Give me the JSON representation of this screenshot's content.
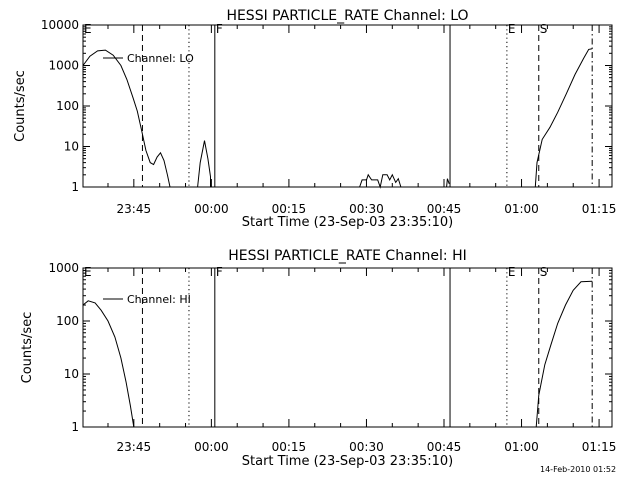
{
  "footer": {
    "timestamp": "14-Feb-2010 01:52"
  },
  "chart_data": [
    {
      "type": "line",
      "title": "HESSI PARTICLE_RATE Channel: LO",
      "xlabel": "Start Time (23-Sep-03 23:35:10)",
      "ylabel": "Counts/sec",
      "yscale": "log",
      "ylim": [
        1,
        10000
      ],
      "y_ticks": [
        {
          "value": 1,
          "label": "1"
        },
        {
          "value": 10,
          "label": "10"
        },
        {
          "value": 100,
          "label": "100"
        },
        {
          "value": 1000,
          "label": "1000"
        },
        {
          "value": 10000,
          "label": "10000"
        }
      ],
      "xlim": [
        "23:35:10",
        "01:17:30"
      ],
      "x_ticks": [
        {
          "value": "23:45",
          "label": "23:45"
        },
        {
          "value": "00:00",
          "label": "00:00"
        },
        {
          "value": "00:15",
          "label": "00:15"
        },
        {
          "value": "00:30",
          "label": "00:30"
        },
        {
          "value": "00:45",
          "label": "00:45"
        },
        {
          "value": "01:00",
          "label": "01:00"
        },
        {
          "value": "01:15",
          "label": "01:15"
        }
      ],
      "legend": {
        "label": "Channel: LO",
        "position": "top-left"
      },
      "markers": [
        {
          "label": "E",
          "time": "23:35:10",
          "style": "dash-dot"
        },
        {
          "label": "",
          "time": "23:46:40",
          "style": "dashed"
        },
        {
          "label": "",
          "time": "23:55:40",
          "style": "dotted"
        },
        {
          "label": "F",
          "time": "00:00:40",
          "style": "solid"
        },
        {
          "label": "",
          "time": "00:46:10",
          "style": "solid"
        },
        {
          "label": "E",
          "time": "00:57:10",
          "style": "dotted"
        },
        {
          "label": "S",
          "time": "01:03:20",
          "style": "dashed"
        },
        {
          "label": "",
          "time": "01:13:40",
          "style": "dash-dot"
        }
      ],
      "series": [
        {
          "segments": [
            [
              [
                "23:35:10",
                1000
              ],
              [
                "23:36:30",
                1700
              ],
              [
                "23:38:00",
                2300
              ],
              [
                "23:39:30",
                2400
              ],
              [
                "23:41:00",
                1800
              ],
              [
                "23:42:30",
                1000
              ],
              [
                "23:43:40",
                450
              ],
              [
                "23:44:50",
                160
              ],
              [
                "23:45:40",
                75
              ],
              [
                "23:46:30",
                25
              ],
              [
                "23:47:20",
                8
              ],
              [
                "23:48:10",
                4
              ],
              [
                "23:48:50",
                3.6
              ],
              [
                "23:49:30",
                5.5
              ],
              [
                "23:50:10",
                7
              ],
              [
                "23:50:50",
                4.5
              ],
              [
                "23:51:30",
                2
              ],
              [
                "23:52:00",
                1
              ]
            ],
            [
              [
                "23:57:20",
                1
              ],
              [
                "23:57:50",
                4
              ],
              [
                "23:58:40",
                14
              ],
              [
                "23:59:20",
                5
              ],
              [
                "23:59:50",
                1.8
              ],
              [
                "23:59:50",
                1
              ]
            ],
            [
              [
                "00:28:40",
                1
              ],
              [
                "00:29:10",
                1.5
              ],
              [
                "00:30:00",
                1.5
              ],
              [
                "00:30:20",
                2
              ],
              [
                "00:31:00",
                1.5
              ],
              [
                "00:32:10",
                1.5
              ],
              [
                "00:32:40",
                1
              ],
              [
                "00:33:10",
                2
              ],
              [
                "00:34:00",
                2
              ],
              [
                "00:34:30",
                1.5
              ],
              [
                "00:35:00",
                2
              ],
              [
                "00:35:40",
                1.3
              ],
              [
                "00:36:10",
                1.6
              ],
              [
                "00:36:40",
                1
              ]
            ],
            [
              [
                "00:45:30",
                1
              ],
              [
                "00:45:40",
                1.6
              ],
              [
                "00:46:00",
                1.2
              ]
            ],
            [
              [
                "01:02:40",
                1
              ],
              [
                "01:03:00",
                4
              ],
              [
                "01:04:00",
                15
              ],
              [
                "01:05:30",
                30
              ],
              [
                "01:07:00",
                70
              ],
              [
                "01:08:40",
                200
              ],
              [
                "01:10:20",
                600
              ],
              [
                "01:12:00",
                1500
              ],
              [
                "01:13:00",
                2500
              ],
              [
                "01:13:40",
                2600
              ]
            ]
          ]
        }
      ]
    },
    {
      "type": "line",
      "title": "HESSI PARTICLE_RATE Channel: HI",
      "xlabel": "Start Time (23-Sep-03 23:35:10)",
      "ylabel": "Counts/sec",
      "yscale": "log",
      "ylim": [
        1,
        1000
      ],
      "y_ticks": [
        {
          "value": 1,
          "label": "1"
        },
        {
          "value": 10,
          "label": "10"
        },
        {
          "value": 100,
          "label": "100"
        },
        {
          "value": 1000,
          "label": "1000"
        }
      ],
      "xlim": [
        "23:35:10",
        "01:17:30"
      ],
      "x_ticks": [
        {
          "value": "23:45",
          "label": "23:45"
        },
        {
          "value": "00:00",
          "label": "00:00"
        },
        {
          "value": "00:15",
          "label": "00:15"
        },
        {
          "value": "00:30",
          "label": "00:30"
        },
        {
          "value": "00:45",
          "label": "00:45"
        },
        {
          "value": "01:00",
          "label": "01:00"
        },
        {
          "value": "01:15",
          "label": "01:15"
        }
      ],
      "legend": {
        "label": "Channel: HI",
        "position": "top-left"
      },
      "markers": [
        {
          "label": "E",
          "time": "23:35:10",
          "style": "dash-dot"
        },
        {
          "label": "",
          "time": "23:46:40",
          "style": "dashed"
        },
        {
          "label": "",
          "time": "23:55:40",
          "style": "dotted"
        },
        {
          "label": "F",
          "time": "00:00:40",
          "style": "solid"
        },
        {
          "label": "",
          "time": "00:46:10",
          "style": "solid"
        },
        {
          "label": "E",
          "time": "00:57:10",
          "style": "dotted"
        },
        {
          "label": "S",
          "time": "01:03:20",
          "style": "dashed"
        },
        {
          "label": "",
          "time": "01:13:40",
          "style": "dash-dot"
        }
      ],
      "series": [
        {
          "segments": [
            [
              [
                "23:35:10",
                200
              ],
              [
                "23:36:10",
                240
              ],
              [
                "23:37:30",
                220
              ],
              [
                "23:38:40",
                160
              ],
              [
                "23:40:00",
                100
              ],
              [
                "23:41:20",
                50
              ],
              [
                "23:42:30",
                20
              ],
              [
                "23:43:30",
                7
              ],
              [
                "23:44:20",
                2.5
              ],
              [
                "23:45:00",
                1
              ]
            ],
            [
              [
                "01:02:50",
                1
              ],
              [
                "01:03:20",
                4
              ],
              [
                "01:04:30",
                15
              ],
              [
                "01:05:40",
                35
              ],
              [
                "01:07:00",
                90
              ],
              [
                "01:08:30",
                200
              ],
              [
                "01:10:00",
                380
              ],
              [
                "01:11:30",
                550
              ],
              [
                "01:13:40",
                560
              ]
            ]
          ]
        }
      ]
    }
  ]
}
